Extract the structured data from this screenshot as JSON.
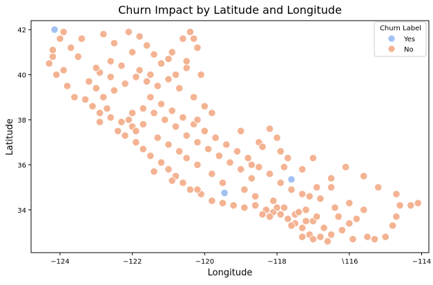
{
  "chart_data": {
    "type": "scatter",
    "title": "Churn Impact by Latitude and Longitude",
    "xlabel": "Longitude",
    "ylabel": "Latitude",
    "xlim": [
      -124.8,
      -113.8
    ],
    "ylim": [
      32.1,
      42.4
    ],
    "xticks": [
      -124,
      -122,
      -120,
      -118,
      -116,
      -114
    ],
    "xtick_labels": [
      "−124",
      "−122",
      "−120",
      "−118",
      "∖116",
      "−114"
    ],
    "yticks": [
      34,
      36,
      38,
      40,
      42
    ],
    "ytick_labels": [
      "34",
      "36",
      "38",
      "40",
      "42"
    ],
    "grid": false,
    "legend": {
      "title": "Churn Label",
      "placement": "top-right",
      "entries": [
        {
          "label": "Yes",
          "color": "#a1c1f2"
        },
        {
          "label": "No",
          "color": "#f4b392"
        }
      ]
    },
    "series": [
      {
        "name": "No",
        "color": "#f4b392",
        "points": [
          [
            -124.3,
            40.5
          ],
          [
            -124.2,
            40.8
          ],
          [
            -124.0,
            41.6
          ],
          [
            -123.9,
            40.2
          ],
          [
            -124.1,
            40.0
          ],
          [
            -123.7,
            41.2
          ],
          [
            -123.5,
            40.8
          ],
          [
            -123.8,
            39.5
          ],
          [
            -123.6,
            39.0
          ],
          [
            -123.3,
            38.9
          ],
          [
            -123.0,
            39.4
          ],
          [
            -122.8,
            41.8
          ],
          [
            -122.5,
            41.4
          ],
          [
            -122.6,
            40.6
          ],
          [
            -122.3,
            40.4
          ],
          [
            -122.1,
            41.9
          ],
          [
            -121.8,
            41.7
          ],
          [
            -121.6,
            41.3
          ],
          [
            -121.4,
            40.9
          ],
          [
            -121.2,
            40.5
          ],
          [
            -120.9,
            41.0
          ],
          [
            -120.6,
            41.6
          ],
          [
            -120.4,
            41.9
          ],
          [
            -120.2,
            41.2
          ],
          [
            -120.5,
            40.3
          ],
          [
            -120.8,
            40.0
          ],
          [
            -121.0,
            39.8
          ],
          [
            -121.3,
            39.5
          ],
          [
            -121.6,
            39.7
          ],
          [
            -121.9,
            39.9
          ],
          [
            -122.2,
            39.6
          ],
          [
            -122.5,
            39.3
          ],
          [
            -122.8,
            39.0
          ],
          [
            -123.1,
            38.6
          ],
          [
            -122.9,
            38.3
          ],
          [
            -122.6,
            38.1
          ],
          [
            -122.3,
            37.9
          ],
          [
            -122.0,
            37.7
          ],
          [
            -122.4,
            37.5
          ],
          [
            -122.2,
            37.3
          ],
          [
            -121.9,
            37.0
          ],
          [
            -121.7,
            36.7
          ],
          [
            -121.5,
            36.4
          ],
          [
            -121.2,
            36.1
          ],
          [
            -121.0,
            35.8
          ],
          [
            -120.8,
            35.5
          ],
          [
            -120.6,
            35.2
          ],
          [
            -120.4,
            34.9
          ],
          [
            -120.1,
            34.7
          ],
          [
            -119.8,
            34.4
          ],
          [
            -119.5,
            34.3
          ],
          [
            -119.2,
            34.2
          ],
          [
            -118.9,
            34.1
          ],
          [
            -118.6,
            34.2
          ],
          [
            -118.3,
            34.0
          ],
          [
            -118.1,
            33.9
          ],
          [
            -117.9,
            33.8
          ],
          [
            -117.7,
            33.6
          ],
          [
            -117.5,
            33.4
          ],
          [
            -117.3,
            33.2
          ],
          [
            -117.1,
            32.9
          ],
          [
            -117.0,
            32.7
          ],
          [
            -116.8,
            32.8
          ],
          [
            -116.5,
            32.9
          ],
          [
            -116.2,
            33.1
          ],
          [
            -116.0,
            33.4
          ],
          [
            -115.8,
            33.6
          ],
          [
            -115.5,
            32.8
          ],
          [
            -115.3,
            32.7
          ],
          [
            -115.0,
            32.8
          ],
          [
            -114.8,
            33.3
          ],
          [
            -114.7,
            33.7
          ],
          [
            -114.6,
            34.2
          ],
          [
            -114.7,
            34.7
          ],
          [
            -114.3,
            34.2
          ],
          [
            -114.1,
            34.3
          ],
          [
            -115.2,
            35.0
          ],
          [
            -115.6,
            35.5
          ],
          [
            -116.1,
            35.9
          ],
          [
            -116.5,
            35.4
          ],
          [
            -116.9,
            35.0
          ],
          [
            -117.3,
            34.7
          ],
          [
            -117.6,
            34.9
          ],
          [
            -117.9,
            35.2
          ],
          [
            -118.2,
            35.6
          ],
          [
            -118.5,
            35.9
          ],
          [
            -118.8,
            36.3
          ],
          [
            -119.1,
            36.6
          ],
          [
            -119.4,
            36.9
          ],
          [
            -119.7,
            37.2
          ],
          [
            -120.0,
            37.5
          ],
          [
            -120.3,
            37.8
          ],
          [
            -120.6,
            38.1
          ],
          [
            -120.9,
            38.4
          ],
          [
            -121.2,
            38.7
          ],
          [
            -121.5,
            39.0
          ],
          [
            -121.1,
            38.0
          ],
          [
            -120.8,
            37.7
          ],
          [
            -120.5,
            37.3
          ],
          [
            -120.2,
            37.0
          ],
          [
            -119.9,
            36.7
          ],
          [
            -119.6,
            36.4
          ],
          [
            -119.3,
            36.1
          ],
          [
            -119.0,
            35.8
          ],
          [
            -118.7,
            35.4
          ],
          [
            -119.5,
            35.2
          ],
          [
            -119.8,
            35.6
          ],
          [
            -120.2,
            36.0
          ],
          [
            -120.5,
            36.3
          ],
          [
            -119.0,
            37.5
          ],
          [
            -118.5,
            37.0
          ],
          [
            -118.2,
            37.6
          ],
          [
            -118.0,
            37.2
          ],
          [
            -117.7,
            36.3
          ],
          [
            -117.9,
            36.6
          ],
          [
            -118.4,
            36.8
          ],
          [
            -117.3,
            35.8
          ],
          [
            -117.0,
            36.3
          ],
          [
            -116.8,
            34.5
          ],
          [
            -116.4,
            34.1
          ],
          [
            -116.0,
            34.3
          ],
          [
            -115.6,
            34.0
          ],
          [
            -118.6,
            34.6
          ],
          [
            -118.9,
            34.9
          ],
          [
            -117.2,
            34.0
          ],
          [
            -117.5,
            33.8
          ],
          [
            -117.8,
            34.1
          ],
          [
            -118.1,
            34.4
          ],
          [
            -117.4,
            33.9
          ],
          [
            -117.0,
            33.5
          ],
          [
            -116.7,
            33.2
          ],
          [
            -116.9,
            33.7
          ],
          [
            -117.2,
            33.5
          ],
          [
            -118.4,
            33.8
          ],
          [
            -118.2,
            33.7
          ],
          [
            -118.0,
            34.1
          ],
          [
            -122.7,
            38.5
          ],
          [
            -122.0,
            38.3
          ],
          [
            -121.7,
            38.5
          ],
          [
            -121.4,
            38.3
          ],
          [
            -121.7,
            37.8
          ],
          [
            -121.9,
            37.5
          ],
          [
            -122.1,
            38.0
          ],
          [
            -122.9,
            37.9
          ],
          [
            -123.2,
            39.7
          ],
          [
            -122.9,
            40.1
          ],
          [
            -122.6,
            39.9
          ],
          [
            -121.8,
            40.2
          ],
          [
            -121.5,
            40.0
          ],
          [
            -121.0,
            40.7
          ],
          [
            -120.7,
            39.4
          ],
          [
            -120.3,
            39.0
          ],
          [
            -120.0,
            38.6
          ],
          [
            -119.8,
            38.3
          ],
          [
            -120.2,
            38.0
          ],
          [
            -121.3,
            37.2
          ],
          [
            -121.0,
            36.9
          ],
          [
            -120.7,
            36.6
          ],
          [
            -121.4,
            35.7
          ],
          [
            -120.9,
            35.3
          ],
          [
            -120.2,
            34.9
          ],
          [
            -123.9,
            41.9
          ],
          [
            -123.4,
            41.6
          ],
          [
            -122.0,
            41.0
          ],
          [
            -123.0,
            40.3
          ],
          [
            -120.5,
            40.6
          ],
          [
            -120.1,
            40.0
          ],
          [
            -120.3,
            41.6
          ],
          [
            -124.2,
            41.1
          ],
          [
            -117.6,
            33.3
          ],
          [
            -117.3,
            32.8
          ],
          [
            -116.6,
            32.6
          ],
          [
            -116.3,
            33.7
          ],
          [
            -115.9,
            32.7
          ],
          [
            -117.1,
            34.6
          ],
          [
            -116.5,
            35.0
          ],
          [
            -117.8,
            35.9
          ],
          [
            -118.7,
            36.0
          ]
        ]
      },
      {
        "name": "Yes",
        "color": "#a1c1f2",
        "points": [
          [
            -124.15,
            42.0
          ],
          [
            -117.6,
            35.35
          ],
          [
            -119.45,
            34.75
          ]
        ]
      }
    ]
  }
}
